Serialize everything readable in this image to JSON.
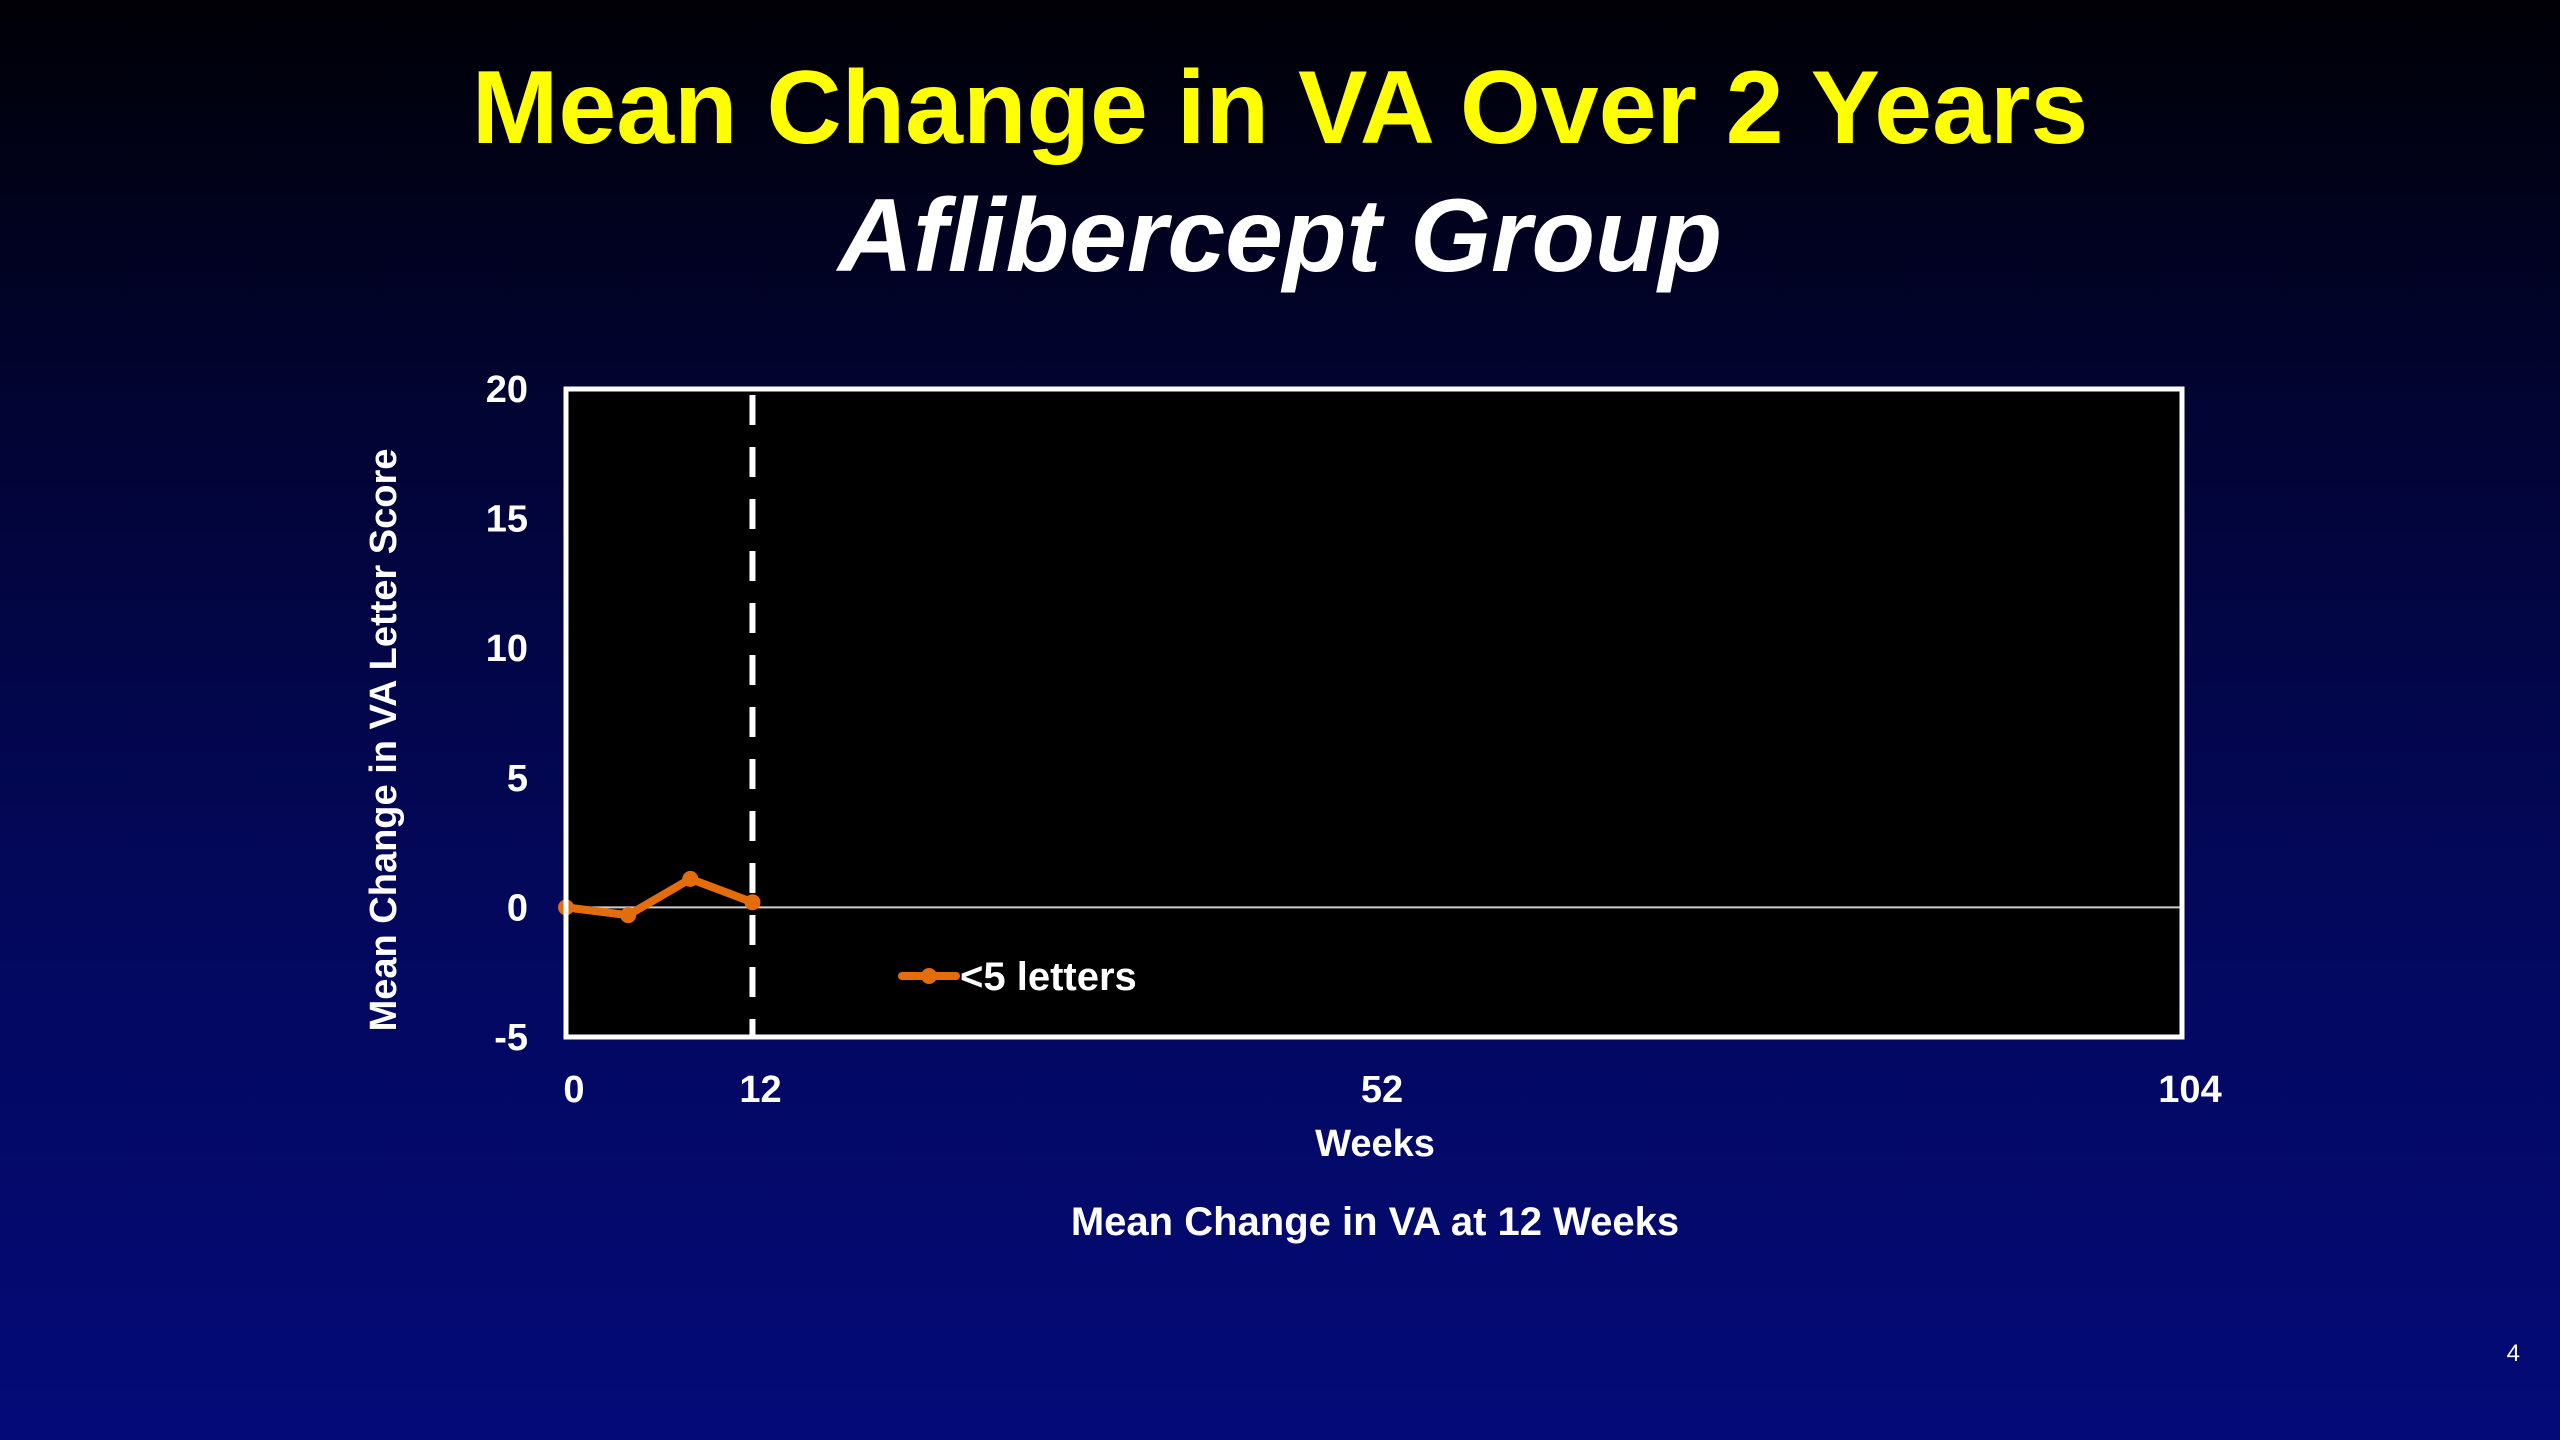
{
  "slide": {
    "title": "Mean Change in VA Over 2 Years",
    "subtitle": "Aflibercept Group",
    "page_number": "4"
  },
  "chart_data": {
    "type": "line",
    "title": "Mean Change in VA Over 2 Years",
    "subtitle": "Aflibercept Group",
    "xlabel": "Weeks",
    "ylabel": "Mean Change in VA Letter Score",
    "caption": "Mean Change in VA at 12 Weeks",
    "xlim": [
      0,
      104
    ],
    "ylim": [
      -5,
      20
    ],
    "x_ticks": [
      0,
      12,
      52,
      104
    ],
    "x_tick_labels": [
      "0",
      "12",
      "52",
      "104"
    ],
    "y_ticks": [
      -5,
      0,
      5,
      10,
      15,
      20
    ],
    "y_tick_labels": [
      "-5",
      "0",
      "5",
      "10",
      "15",
      "20"
    ],
    "reference_line_y": 0,
    "vertical_marker_x": 12,
    "series": [
      {
        "name": "<5 letters",
        "color": "#e46c0a",
        "x": [
          0,
          4,
          8,
          12
        ],
        "values": [
          0.0,
          -0.3,
          1.1,
          0.2
        ]
      }
    ],
    "legend": {
      "position": "lower-left",
      "label": "<5 letters"
    },
    "colors": {
      "plot_background": "#000000",
      "frame": "#ffffff",
      "zero_line": "#cfcfcf",
      "marker_line": "#ffffff"
    }
  }
}
